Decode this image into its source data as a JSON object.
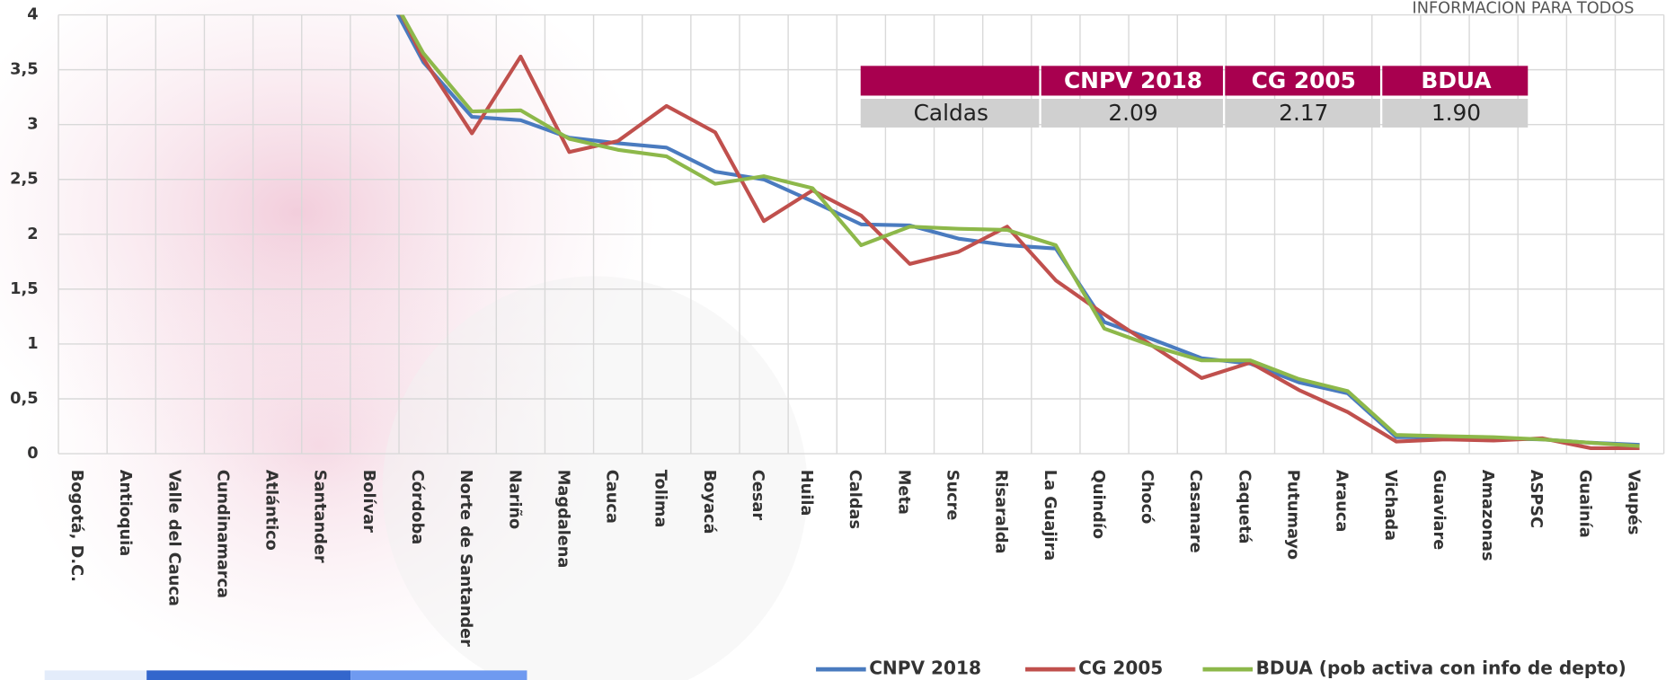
{
  "chart_data": {
    "type": "line",
    "annotation": "INFORMACION PARA TODOS",
    "categories": [
      "Bogotá, D.C.",
      "Antioquia",
      "Valle del Cauca",
      "Cundinamarca",
      "Atlántico",
      "Santander",
      "Bolívar",
      "Córdoba",
      "Norte de Santander",
      "Nariño",
      "Magdalena",
      "Cauca",
      "Tolima",
      "Boyacá",
      "Cesar",
      "Huila",
      "Caldas",
      "Meta",
      "Sucre",
      "Risaralda",
      "La Guajira",
      "Quindío",
      "Chocó",
      "Casanare",
      "Caquetá",
      "Putumayo",
      "Arauca",
      "Vichada",
      "Guaviare",
      "Amazonas",
      "ASPSC",
      "Guainía",
      "Vaupés"
    ],
    "series": [
      {
        "name": "CNPV 2018",
        "color": "#4a7bbf",
        "values": [
          null,
          null,
          null,
          null,
          null,
          null,
          4.4,
          3.57,
          3.07,
          3.04,
          2.88,
          2.83,
          2.79,
          2.57,
          2.5,
          2.3,
          2.09,
          2.08,
          1.96,
          1.9,
          1.87,
          1.2,
          1.04,
          0.87,
          0.82,
          0.65,
          0.55,
          0.15,
          0.15,
          0.14,
          0.13,
          0.1,
          0.08
        ]
      },
      {
        "name": "CG 2005",
        "color": "#c0504d",
        "values": [
          null,
          null,
          null,
          null,
          null,
          null,
          4.5,
          3.6,
          2.92,
          3.62,
          2.75,
          2.85,
          3.17,
          2.93,
          2.12,
          2.4,
          2.17,
          1.73,
          1.84,
          2.07,
          1.58,
          1.27,
          0.98,
          0.69,
          0.83,
          0.58,
          0.38,
          0.11,
          0.13,
          0.12,
          0.14,
          0.05,
          0.05
        ]
      },
      {
        "name": "BDUA (pob activa con info de depto)",
        "color": "#8db84a",
        "values": [
          null,
          null,
          null,
          null,
          null,
          null,
          4.45,
          3.65,
          3.12,
          3.13,
          2.87,
          2.77,
          2.71,
          2.46,
          2.53,
          2.42,
          1.9,
          2.07,
          2.05,
          2.04,
          1.9,
          1.14,
          0.98,
          0.85,
          0.85,
          0.68,
          0.57,
          0.17,
          0.16,
          0.15,
          0.13,
          0.1,
          0.07
        ]
      }
    ],
    "ylim": [
      0,
      4
    ],
    "yticks": [
      0,
      {
        "value": 0.5,
        "label": "0,5"
      },
      1,
      {
        "value": 1.5,
        "label": "1,5"
      },
      2,
      {
        "value": 2.5,
        "label": "2,5"
      },
      3,
      {
        "value": 3.5,
        "label": "3,5"
      },
      4
    ],
    "grid": true,
    "legend": "bottom-right",
    "table": {
      "header_color": "#a8004f",
      "row_color": "#d0d0d0",
      "columns": [
        "CNPV 2018",
        "CG 2005",
        "BDUA"
      ],
      "rows": [
        {
          "label": "Caldas",
          "cells": [
            "2.09",
            "2.17",
            "1.90"
          ]
        }
      ]
    }
  }
}
